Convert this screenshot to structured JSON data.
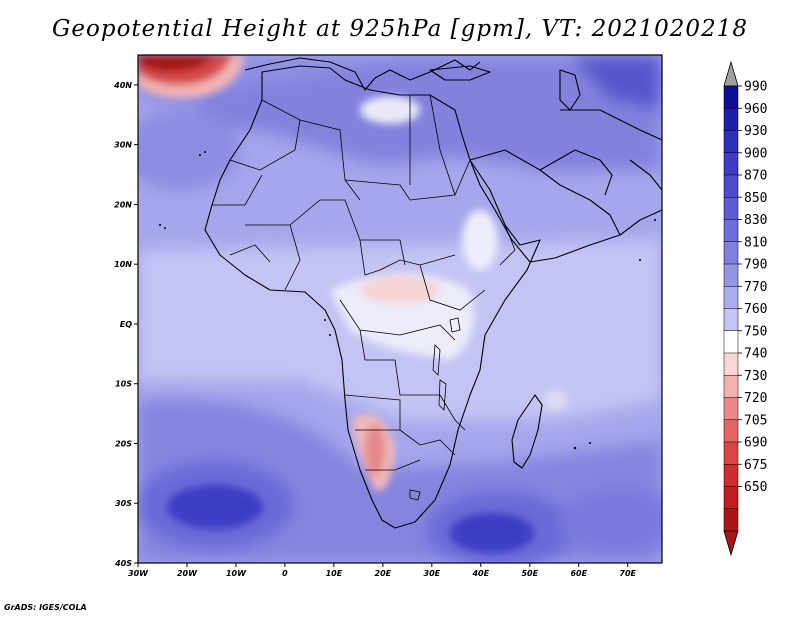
{
  "title": "Geopotential Height at 925hPa [gpm], VT: 2021020218",
  "footer": "GrADS: IGES/COLA",
  "map": {
    "variable": "Geopotential Height",
    "level": "925hPa",
    "units": "gpm",
    "valid_time": "2021020218",
    "lon_range": [
      -30,
      77
    ],
    "lat_range": [
      -40,
      45
    ],
    "lon_ticks": [
      "30W",
      "20W",
      "10W",
      "0",
      "10E",
      "20E",
      "30E",
      "40E",
      "50E",
      "60E",
      "70E"
    ],
    "lat_ticks": [
      "40N",
      "30N",
      "20N",
      "10N",
      "EQ",
      "10S",
      "20S",
      "30S",
      "40S"
    ]
  },
  "colorbar": {
    "labels": [
      "990",
      "960",
      "930",
      "900",
      "870",
      "850",
      "830",
      "810",
      "790",
      "770",
      "760",
      "750",
      "740",
      "730",
      "720",
      "705",
      "690",
      "675",
      "650"
    ],
    "colors": [
      "#0d0d96",
      "#1e1ea8",
      "#2e2eb8",
      "#3c3cc4",
      "#4b4bcc",
      "#5c5cd4",
      "#6e6edb",
      "#8080e0",
      "#9595e6",
      "#acacee",
      "#c4c4f4",
      "#ffffff",
      "#fbd6d6",
      "#f5b0b0",
      "#ee8888",
      "#e66464",
      "#dd4545",
      "#cf2d2d",
      "#c01e1e",
      "#aa1515"
    ],
    "top_arrow_color": "#a0a0a0",
    "bottom_arrow_color": "#aa1515"
  }
}
